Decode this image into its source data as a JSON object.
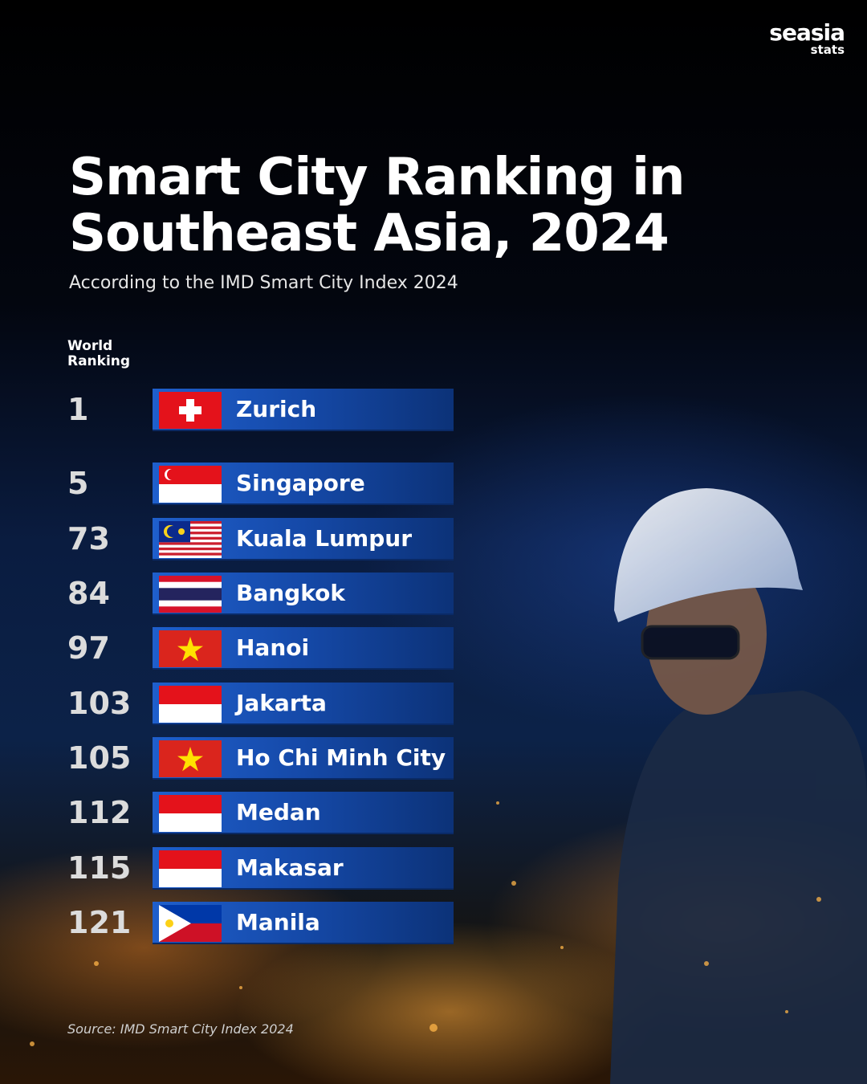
{
  "header": {
    "brand": "seasia",
    "brand_sub": "stats",
    "title": "Smart City Ranking in Southeast Asia, 2024",
    "subtitle": "According to the IMD Smart City Index  2024"
  },
  "table": {
    "column_header": "World Ranking",
    "rows": [
      {
        "rank": 1,
        "city": "Zurich"
      },
      {
        "rank": 5,
        "city": "Singapore"
      },
      {
        "rank": 73,
        "city": "Kuala Lumpur"
      },
      {
        "rank": 84,
        "city": "Bangkok"
      },
      {
        "rank": 97,
        "city": "Hanoi"
      },
      {
        "rank": 103,
        "city": "Jakarta"
      },
      {
        "rank": 105,
        "city": "Ho Chi Minh City"
      },
      {
        "rank": 112,
        "city": "Medan"
      },
      {
        "rank": 115,
        "city": "Makasar"
      },
      {
        "rank": 121,
        "city": "Manila"
      }
    ]
  },
  "footer": {
    "source": "Source: IMD Smart City Index 2024"
  }
}
